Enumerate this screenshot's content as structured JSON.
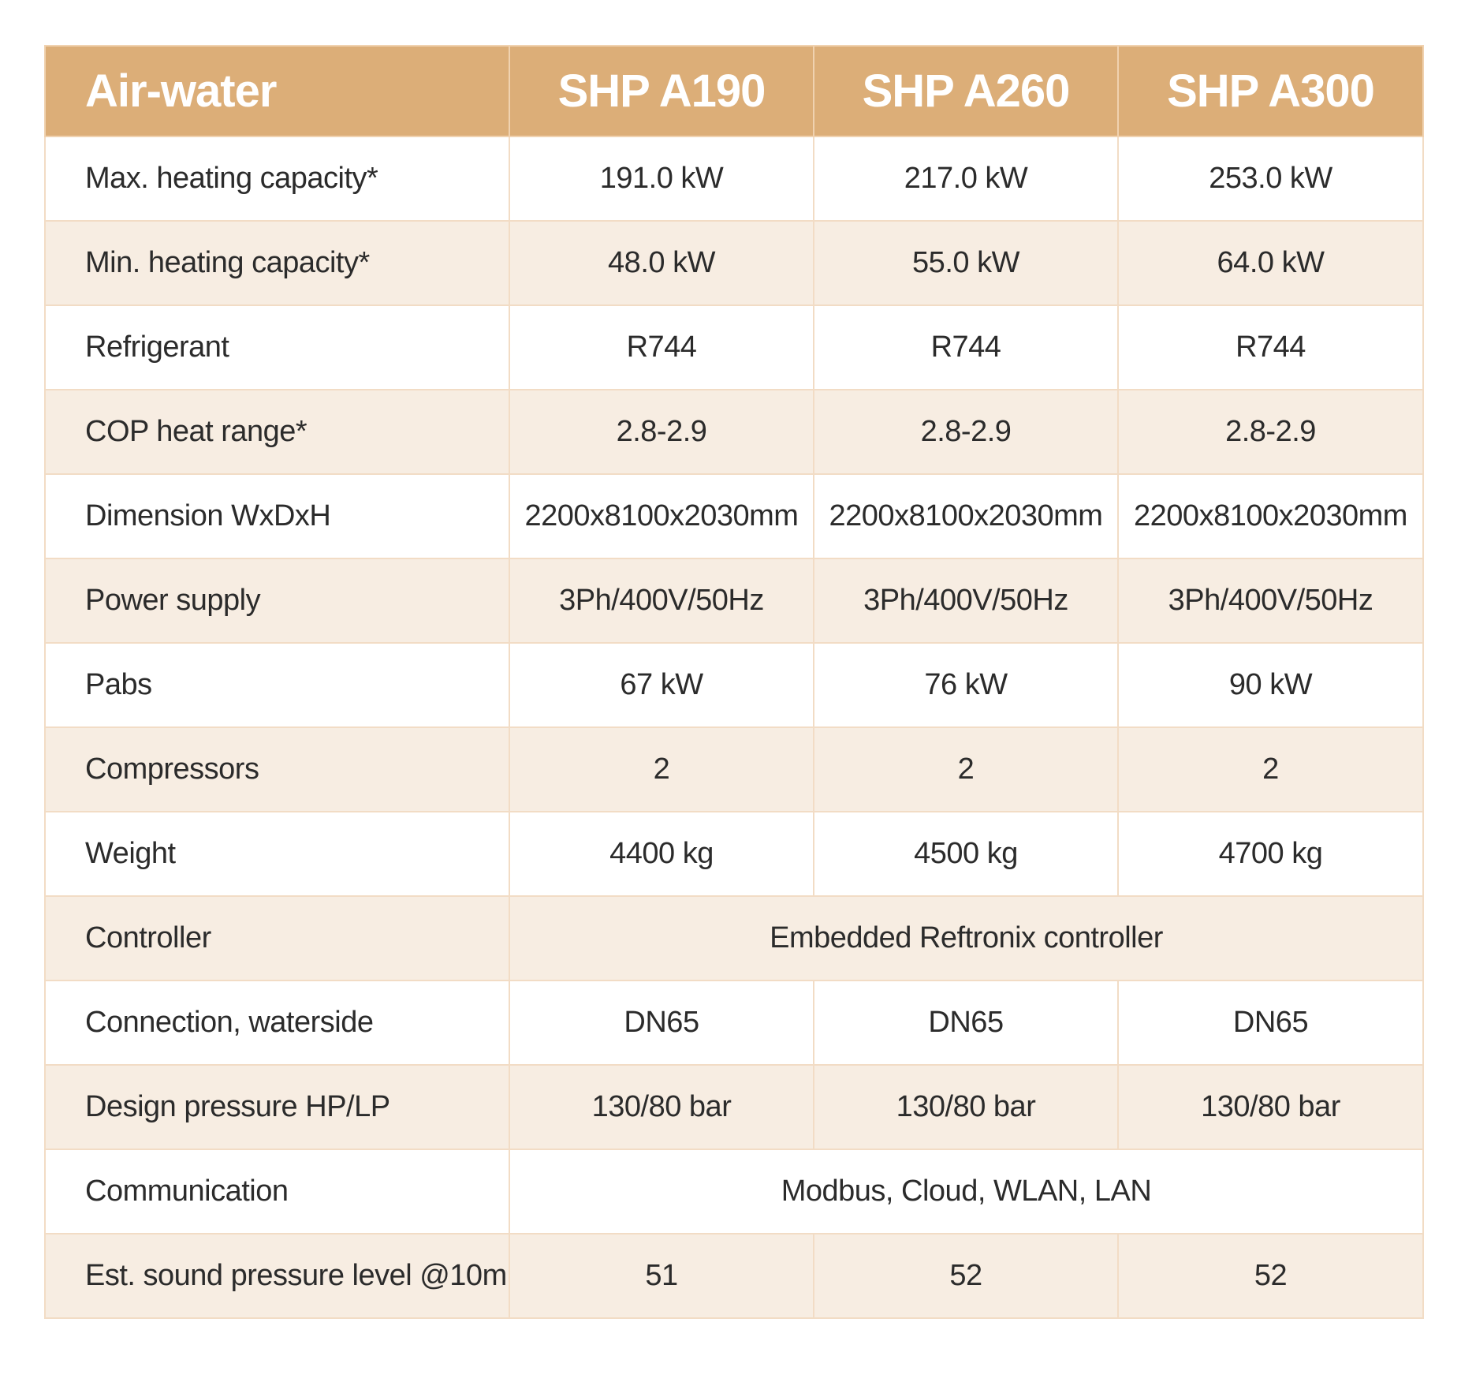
{
  "header": {
    "title": "Air-water",
    "models": [
      "SHP A190",
      "SHP A260",
      "SHP A300"
    ]
  },
  "rows": [
    {
      "label": "Max. heating capacity*",
      "values": [
        "191.0 kW",
        "217.0 kW",
        "253.0 kW"
      ]
    },
    {
      "label": "Min. heating capacity*",
      "values": [
        "48.0 kW",
        "55.0 kW",
        "64.0 kW"
      ]
    },
    {
      "label": "Refrigerant",
      "values": [
        "R744",
        "R744",
        "R744"
      ]
    },
    {
      "label": "COP heat range*",
      "values": [
        "2.8-2.9",
        "2.8-2.9",
        "2.8-2.9"
      ]
    },
    {
      "label": "Dimension WxDxH",
      "values": [
        "2200x8100x2030mm",
        "2200x8100x2030mm",
        "2200x8100x2030mm"
      ]
    },
    {
      "label": "Power supply",
      "values": [
        "3Ph/400V/50Hz",
        "3Ph/400V/50Hz",
        "3Ph/400V/50Hz"
      ]
    },
    {
      "label": "Pabs",
      "values": [
        "67 kW",
        "76 kW",
        "90 kW"
      ]
    },
    {
      "label": "Compressors",
      "values": [
        "2",
        "2",
        "2"
      ]
    },
    {
      "label": "Weight",
      "values": [
        "4400 kg",
        "4500 kg",
        "4700 kg"
      ]
    },
    {
      "label": "Controller",
      "value": "Embedded Reftronix controller"
    },
    {
      "label": "Connection, waterside",
      "values": [
        "DN65",
        "DN65",
        "DN65"
      ]
    },
    {
      "label": "Design pressure HP/LP",
      "values": [
        "130/80 bar",
        "130/80 bar",
        "130/80 bar"
      ]
    },
    {
      "label": "Communication",
      "value": "Modbus, Cloud, WLAN, LAN"
    },
    {
      "label": "Est. sound pressure level @10m",
      "values": [
        "51",
        "52",
        "52"
      ]
    }
  ],
  "colors": {
    "header_bg": "#dcae78",
    "header_text": "#ffffff",
    "stripe_bg": "#f7ede2",
    "border": "#f2dcc5",
    "text": "#2b2b2b"
  }
}
